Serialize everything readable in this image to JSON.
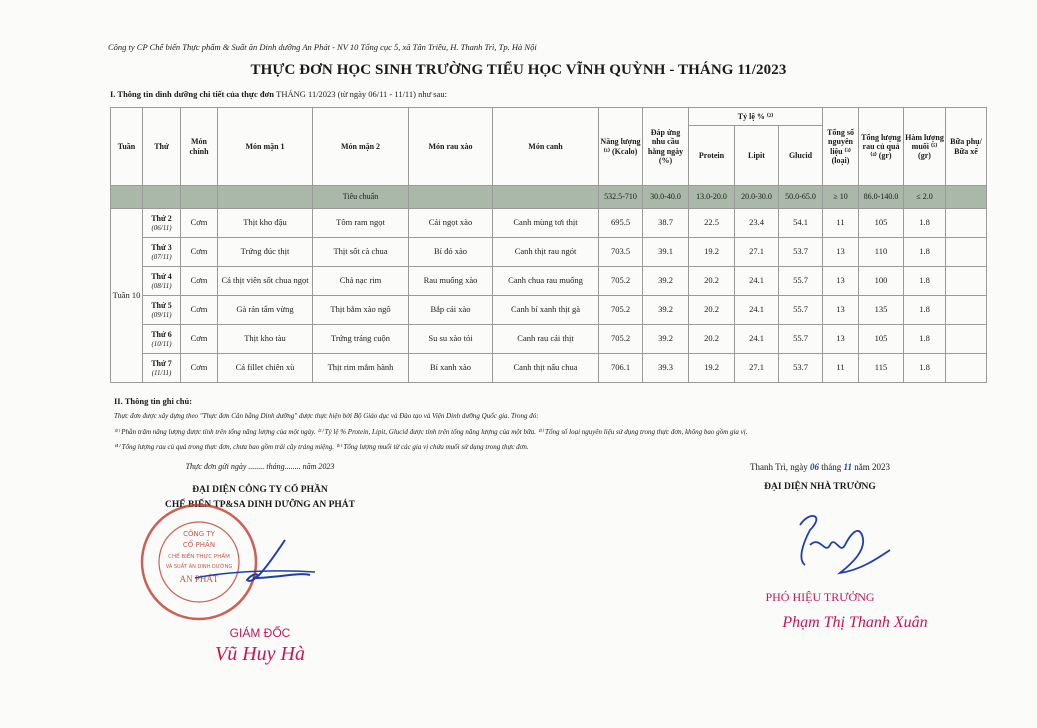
{
  "company_line": "Công ty CP Chế biến Thực phẩm & Suất ăn Dinh dưỡng An Phát - NV 10 Tổng cục 5, xã Tân Triều, H. Thanh Trì, Tp. Hà Nội",
  "title": "THỰC ĐƠN HỌC SINH TRƯỜNG TIỂU HỌC VĨNH QUỲNH - THÁNG 11/2023",
  "section1": {
    "label": "I. Thông tin dinh dưỡng chi tiết của thực đơn",
    "detail": "THÁNG 11/2023 (từ ngày 06/11 - 11/11) như sau:"
  },
  "table": {
    "headers": {
      "tuan": "Tuần",
      "thu": "Thứ",
      "mon_chinh": "Món chính",
      "mon_man_1": "Món mặn 1",
      "mon_man_2": "Món mặn 2",
      "mon_rau_xao": "Món rau xào",
      "mon_canh": "Món canh",
      "nang_luong": "Năng lượng ⁽¹⁾ (Kcalo)",
      "dap_ung": "Đáp ứng nhu cầu hằng ngày (%)",
      "ty_le": "Tỷ lệ % ⁽²⁾",
      "protein": "Protein",
      "lipit": "Lipit",
      "glucid": "Glucid",
      "tong_nguyen_lieu": "Tổng số nguyên liệu ⁽³⁾ (loại)",
      "tong_rau": "Tổng lượng rau củ quả ⁽⁴⁾ (gr)",
      "ham_luong_muoi": "Hàm lượng muối ⁽⁵⁾ (gr)",
      "bua_phu": "Bữa phụ/ Bữa xế"
    },
    "standard": {
      "label": "Tiêu chuẩn",
      "values": [
        "532.5-710",
        "30.0-40.0",
        "13.0-20.0",
        "20.0-30.0",
        "50.0-65.0",
        "≥ 10",
        "86.0-140.0",
        "≤ 2.0",
        ""
      ]
    },
    "week": "Tuần 10",
    "rows": [
      {
        "day": "Thứ 2",
        "date": "(06/11)",
        "main": "Cơm",
        "m1": "Thịt kho đậu",
        "m2": "Tôm ram ngọt",
        "veg": "Cải ngọt xào",
        "soup": "Canh mùng tơi thịt",
        "vals": [
          "695.5",
          "38.7",
          "22.5",
          "23.4",
          "54.1",
          "11",
          "105",
          "1.8",
          ""
        ]
      },
      {
        "day": "Thứ 3",
        "date": "(07/11)",
        "main": "Cơm",
        "m1": "Trứng đúc thịt",
        "m2": "Thịt sốt cà chua",
        "veg": "Bí đỏ xào",
        "soup": "Canh thịt rau ngót",
        "vals": [
          "703.5",
          "39.1",
          "19.2",
          "27.1",
          "53.7",
          "13",
          "110",
          "1.8",
          ""
        ]
      },
      {
        "day": "Thứ 4",
        "date": "(08/11)",
        "main": "Cơm",
        "m1": "Cá thịt viên sốt chua ngọt",
        "m2": "Chả nạc rim",
        "veg": "Rau muống xào",
        "soup": "Canh chua rau muống",
        "vals": [
          "705.2",
          "39.2",
          "20.2",
          "24.1",
          "55.7",
          "13",
          "100",
          "1.8",
          ""
        ]
      },
      {
        "day": "Thứ 5",
        "date": "(09/11)",
        "main": "Cơm",
        "m1": "Gà rán tẩm vừng",
        "m2": "Thịt bằm xào ngô",
        "veg": "Bắp cải xào",
        "soup": "Canh bí xanh thịt gà",
        "vals": [
          "705.2",
          "39.2",
          "20.2",
          "24.1",
          "55.7",
          "13",
          "135",
          "1.8",
          ""
        ]
      },
      {
        "day": "Thứ 6",
        "date": "(10/11)",
        "main": "Cơm",
        "m1": "Thịt kho tàu",
        "m2": "Trứng tráng cuộn",
        "veg": "Su su xào tỏi",
        "soup": "Canh rau cải thịt",
        "vals": [
          "705.2",
          "39.2",
          "20.2",
          "24.1",
          "55.7",
          "13",
          "105",
          "1.8",
          ""
        ]
      },
      {
        "day": "Thứ 7",
        "date": "(11/11)",
        "main": "Cơm",
        "m1": "Cá fillet chiên xù",
        "m2": "Thịt rim mắm hành",
        "veg": "Bí xanh xào",
        "soup": "Canh thịt nấu chua",
        "vals": [
          "706.1",
          "39.3",
          "19.2",
          "27.1",
          "53.7",
          "11",
          "115",
          "1.8",
          ""
        ]
      }
    ]
  },
  "section2": {
    "label": "II. Thông tin ghi chú:",
    "intro": "Thực đơn được xây dựng theo \"Thực đơn Cân bằng Dinh dưỡng\" được thực hiện bởi Bộ Giáo dục và Đào tạo và Viện Dinh dưỡng Quốc gia. Trong đó:",
    "note_line1": "⁽¹⁾ Phần trăm năng lượng được tính trên tổng năng lượng của một ngày. ⁽²⁾ Tỷ lệ % Protein, Lipit, Glucid được tính trên tổng năng lượng của một bữa. ⁽³⁾ Tổng số loại nguyên liệu sử dụng trong thực đơn, không bao gồm gia vị.",
    "note_line2": "⁽⁴⁾ Tổng lượng rau củ quả trong thực đơn, chưa bao gồm trái cây tráng miệng. ⁽⁵⁾ Tổng lượng muối từ các gia vị chứa muối sử dụng trong thực đơn."
  },
  "left_signature": {
    "date_line": "Thực đơn gửi ngày ........ tháng........ năm 2023",
    "org_line1": "ĐẠI DIỆN CÔNG TY CỔ PHẦN",
    "org_line2": "CHẾ BIẾN TP&SA DINH DƯỠNG AN PHÁT",
    "stamp_text": "CÔNG TY CỔ PHẦN CHẾ BIẾN THỰC PHẨM VÀ SUẤT ĂN DINH DƯỠNG AN PHÁT - H. THANH TRÌ - TP. HÀ NỘI",
    "position": "GIÁM ĐỐC",
    "name": "Vũ Huy Hà"
  },
  "right_signature": {
    "date_prefix": "Thanh Trì, ngày",
    "day": "06",
    "month_prefix": "tháng",
    "month": "11",
    "year_suffix": "năm 2023",
    "org": "ĐẠI DIỆN NHÀ TRƯỜNG",
    "position": "PHÓ HIỆU TRƯỞNG",
    "name": "Phạm Thị Thanh Xuân"
  },
  "colors": {
    "standard_row": "#a9b8a8",
    "stamp_red": "#c0392b",
    "ink_blue": "#1f3fa8",
    "signature_pink": "#c2185b"
  }
}
